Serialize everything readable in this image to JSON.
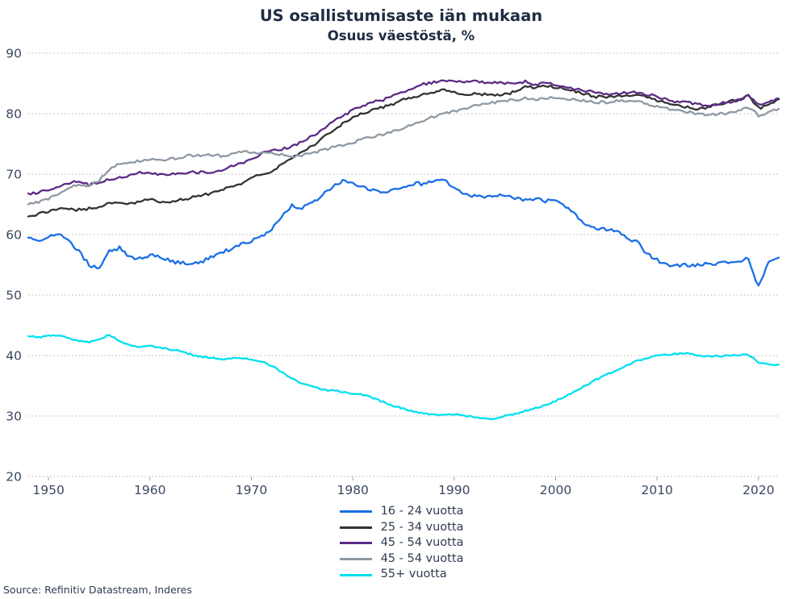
{
  "chart_data": {
    "type": "line",
    "title": "US osallistumisaste iän mukaan",
    "subtitle": "Osuus väestöstä, %",
    "source_note": "Source: Refinitiv Datastream, Inderes",
    "xlabel": "",
    "ylabel": "",
    "xlim": [
      1948,
      2022.5
    ],
    "ylim": [
      20,
      90
    ],
    "x_ticks": [
      1950,
      1960,
      1970,
      1980,
      1990,
      2000,
      2010,
      2020
    ],
    "y_ticks": [
      20,
      30,
      40,
      50,
      60,
      70,
      80,
      90
    ],
    "grid": "horizontal-dotted",
    "legend_position": "bottom-center",
    "years": [
      1948,
      1949,
      1950,
      1951,
      1952,
      1953,
      1954,
      1955,
      1956,
      1957,
      1958,
      1959,
      1960,
      1961,
      1962,
      1963,
      1964,
      1965,
      1966,
      1967,
      1968,
      1969,
      1970,
      1971,
      1972,
      1973,
      1974,
      1975,
      1976,
      1977,
      1978,
      1979,
      1980,
      1981,
      1982,
      1983,
      1984,
      1985,
      1986,
      1987,
      1988,
      1989,
      1990,
      1991,
      1992,
      1993,
      1994,
      1995,
      1996,
      1997,
      1998,
      1999,
      2000,
      2001,
      2002,
      2003,
      2004,
      2005,
      2006,
      2007,
      2008,
      2009,
      2010,
      2011,
      2012,
      2013,
      2014,
      2015,
      2016,
      2017,
      2018,
      2019,
      2020,
      2021,
      2022
    ],
    "series": [
      {
        "name": "16 - 24 vuotta",
        "color": "#1a6fe6",
        "values": [
          59.5,
          59.0,
          59.8,
          60.3,
          59.0,
          57.2,
          55.0,
          54.3,
          57.3,
          57.8,
          56.3,
          56.0,
          56.6,
          56.3,
          55.6,
          55.3,
          55.2,
          55.4,
          56.3,
          57.0,
          57.6,
          58.3,
          59.0,
          59.6,
          60.8,
          63.0,
          64.8,
          64.5,
          65.2,
          66.6,
          68.0,
          68.9,
          68.3,
          67.8,
          67.3,
          67.0,
          67.4,
          68.0,
          68.4,
          68.4,
          68.7,
          69.0,
          67.8,
          66.6,
          66.3,
          66.2,
          66.6,
          66.4,
          66.0,
          65.8,
          65.9,
          65.5,
          65.8,
          64.6,
          63.3,
          61.6,
          61.1,
          60.8,
          60.6,
          59.4,
          58.8,
          56.9,
          55.8,
          55.0,
          54.9,
          55.0,
          55.0,
          55.1,
          55.2,
          55.5,
          55.6,
          56.2,
          51.3,
          55.6,
          56.2
        ]
      },
      {
        "name": "25 - 34 vuotta",
        "color": "#333333",
        "values": [
          63.0,
          63.4,
          63.8,
          64.4,
          64.2,
          64.1,
          64.3,
          64.6,
          65.1,
          65.3,
          65.0,
          65.5,
          65.8,
          65.5,
          65.3,
          65.8,
          66.1,
          66.4,
          66.8,
          67.4,
          67.9,
          68.4,
          69.4,
          69.9,
          70.4,
          71.5,
          72.6,
          73.6,
          74.6,
          75.9,
          77.1,
          78.3,
          79.4,
          80.1,
          80.6,
          81.1,
          81.6,
          82.3,
          82.8,
          83.2,
          83.6,
          84.0,
          83.6,
          83.2,
          83.3,
          83.2,
          83.0,
          83.2,
          83.6,
          84.7,
          84.2,
          84.6,
          84.4,
          84.1,
          83.7,
          83.2,
          82.8,
          82.8,
          82.9,
          83.0,
          83.3,
          82.8,
          82.2,
          81.7,
          81.4,
          81.1,
          80.8,
          81.0,
          81.6,
          81.9,
          82.3,
          82.9,
          80.9,
          81.4,
          82.4
        ]
      },
      {
        "name": "45 - 54 vuotta",
        "color": "#5b2b87",
        "values": [
          66.8,
          67.0,
          67.4,
          68.0,
          68.5,
          68.8,
          68.2,
          68.6,
          69.1,
          69.5,
          69.7,
          70.3,
          70.2,
          70.0,
          69.9,
          70.1,
          70.3,
          70.3,
          70.4,
          70.6,
          71.2,
          71.8,
          72.5,
          73.4,
          73.8,
          74.1,
          74.6,
          75.4,
          76.3,
          77.3,
          78.6,
          79.6,
          80.6,
          81.3,
          81.9,
          82.3,
          82.9,
          83.6,
          84.3,
          84.9,
          85.2,
          85.5,
          85.5,
          85.3,
          85.3,
          85.2,
          85.1,
          85.0,
          85.0,
          85.3,
          84.8,
          85.1,
          84.8,
          84.4,
          84.0,
          83.8,
          83.5,
          83.3,
          83.3,
          83.5,
          83.5,
          83.2,
          82.8,
          82.3,
          82.0,
          81.9,
          81.6,
          81.4,
          81.6,
          81.9,
          82.2,
          83.0,
          81.4,
          81.9,
          82.5
        ]
      },
      {
        "name": "45 - 54 vuotta",
        "color": "#8f99a3",
        "values": [
          65.0,
          65.4,
          66.0,
          66.8,
          67.8,
          68.3,
          68.0,
          69.0,
          70.8,
          71.7,
          71.9,
          72.2,
          72.4,
          72.3,
          72.5,
          72.8,
          73.1,
          73.1,
          73.2,
          73.0,
          73.3,
          73.6,
          73.7,
          73.5,
          73.4,
          73.2,
          72.9,
          73.1,
          73.5,
          74.0,
          74.4,
          74.8,
          75.3,
          75.8,
          76.2,
          76.6,
          77.1,
          77.7,
          78.3,
          78.9,
          79.5,
          80.1,
          80.4,
          80.9,
          81.3,
          81.7,
          81.9,
          82.1,
          82.3,
          82.5,
          82.4,
          82.6,
          82.6,
          82.5,
          82.3,
          82.1,
          81.9,
          81.9,
          82.1,
          82.2,
          82.0,
          81.6,
          81.2,
          80.8,
          80.5,
          80.3,
          80.0,
          79.7,
          79.9,
          80.1,
          80.6,
          81.1,
          79.7,
          80.2,
          80.8
        ]
      },
      {
        "name": "55+ vuotta",
        "color": "#00e0f0",
        "values": [
          43.2,
          43.0,
          43.3,
          43.4,
          42.8,
          42.5,
          42.2,
          42.7,
          43.4,
          42.4,
          41.8,
          41.4,
          41.6,
          41.3,
          41.0,
          40.7,
          40.2,
          39.8,
          39.6,
          39.4,
          39.5,
          39.6,
          39.4,
          39.0,
          38.3,
          37.2,
          36.2,
          35.4,
          34.9,
          34.4,
          34.2,
          34.0,
          33.7,
          33.5,
          33.0,
          32.3,
          31.7,
          31.2,
          30.7,
          30.4,
          30.2,
          30.2,
          30.3,
          30.0,
          29.8,
          29.6,
          29.5,
          30.0,
          30.3,
          30.8,
          31.3,
          31.8,
          32.5,
          33.3,
          34.2,
          35.1,
          36.0,
          36.8,
          37.6,
          38.4,
          39.1,
          39.6,
          40.0,
          40.1,
          40.3,
          40.5,
          40.0,
          39.9,
          39.9,
          40.0,
          40.0,
          40.2,
          38.9,
          38.5,
          38.5
        ]
      }
    ]
  }
}
